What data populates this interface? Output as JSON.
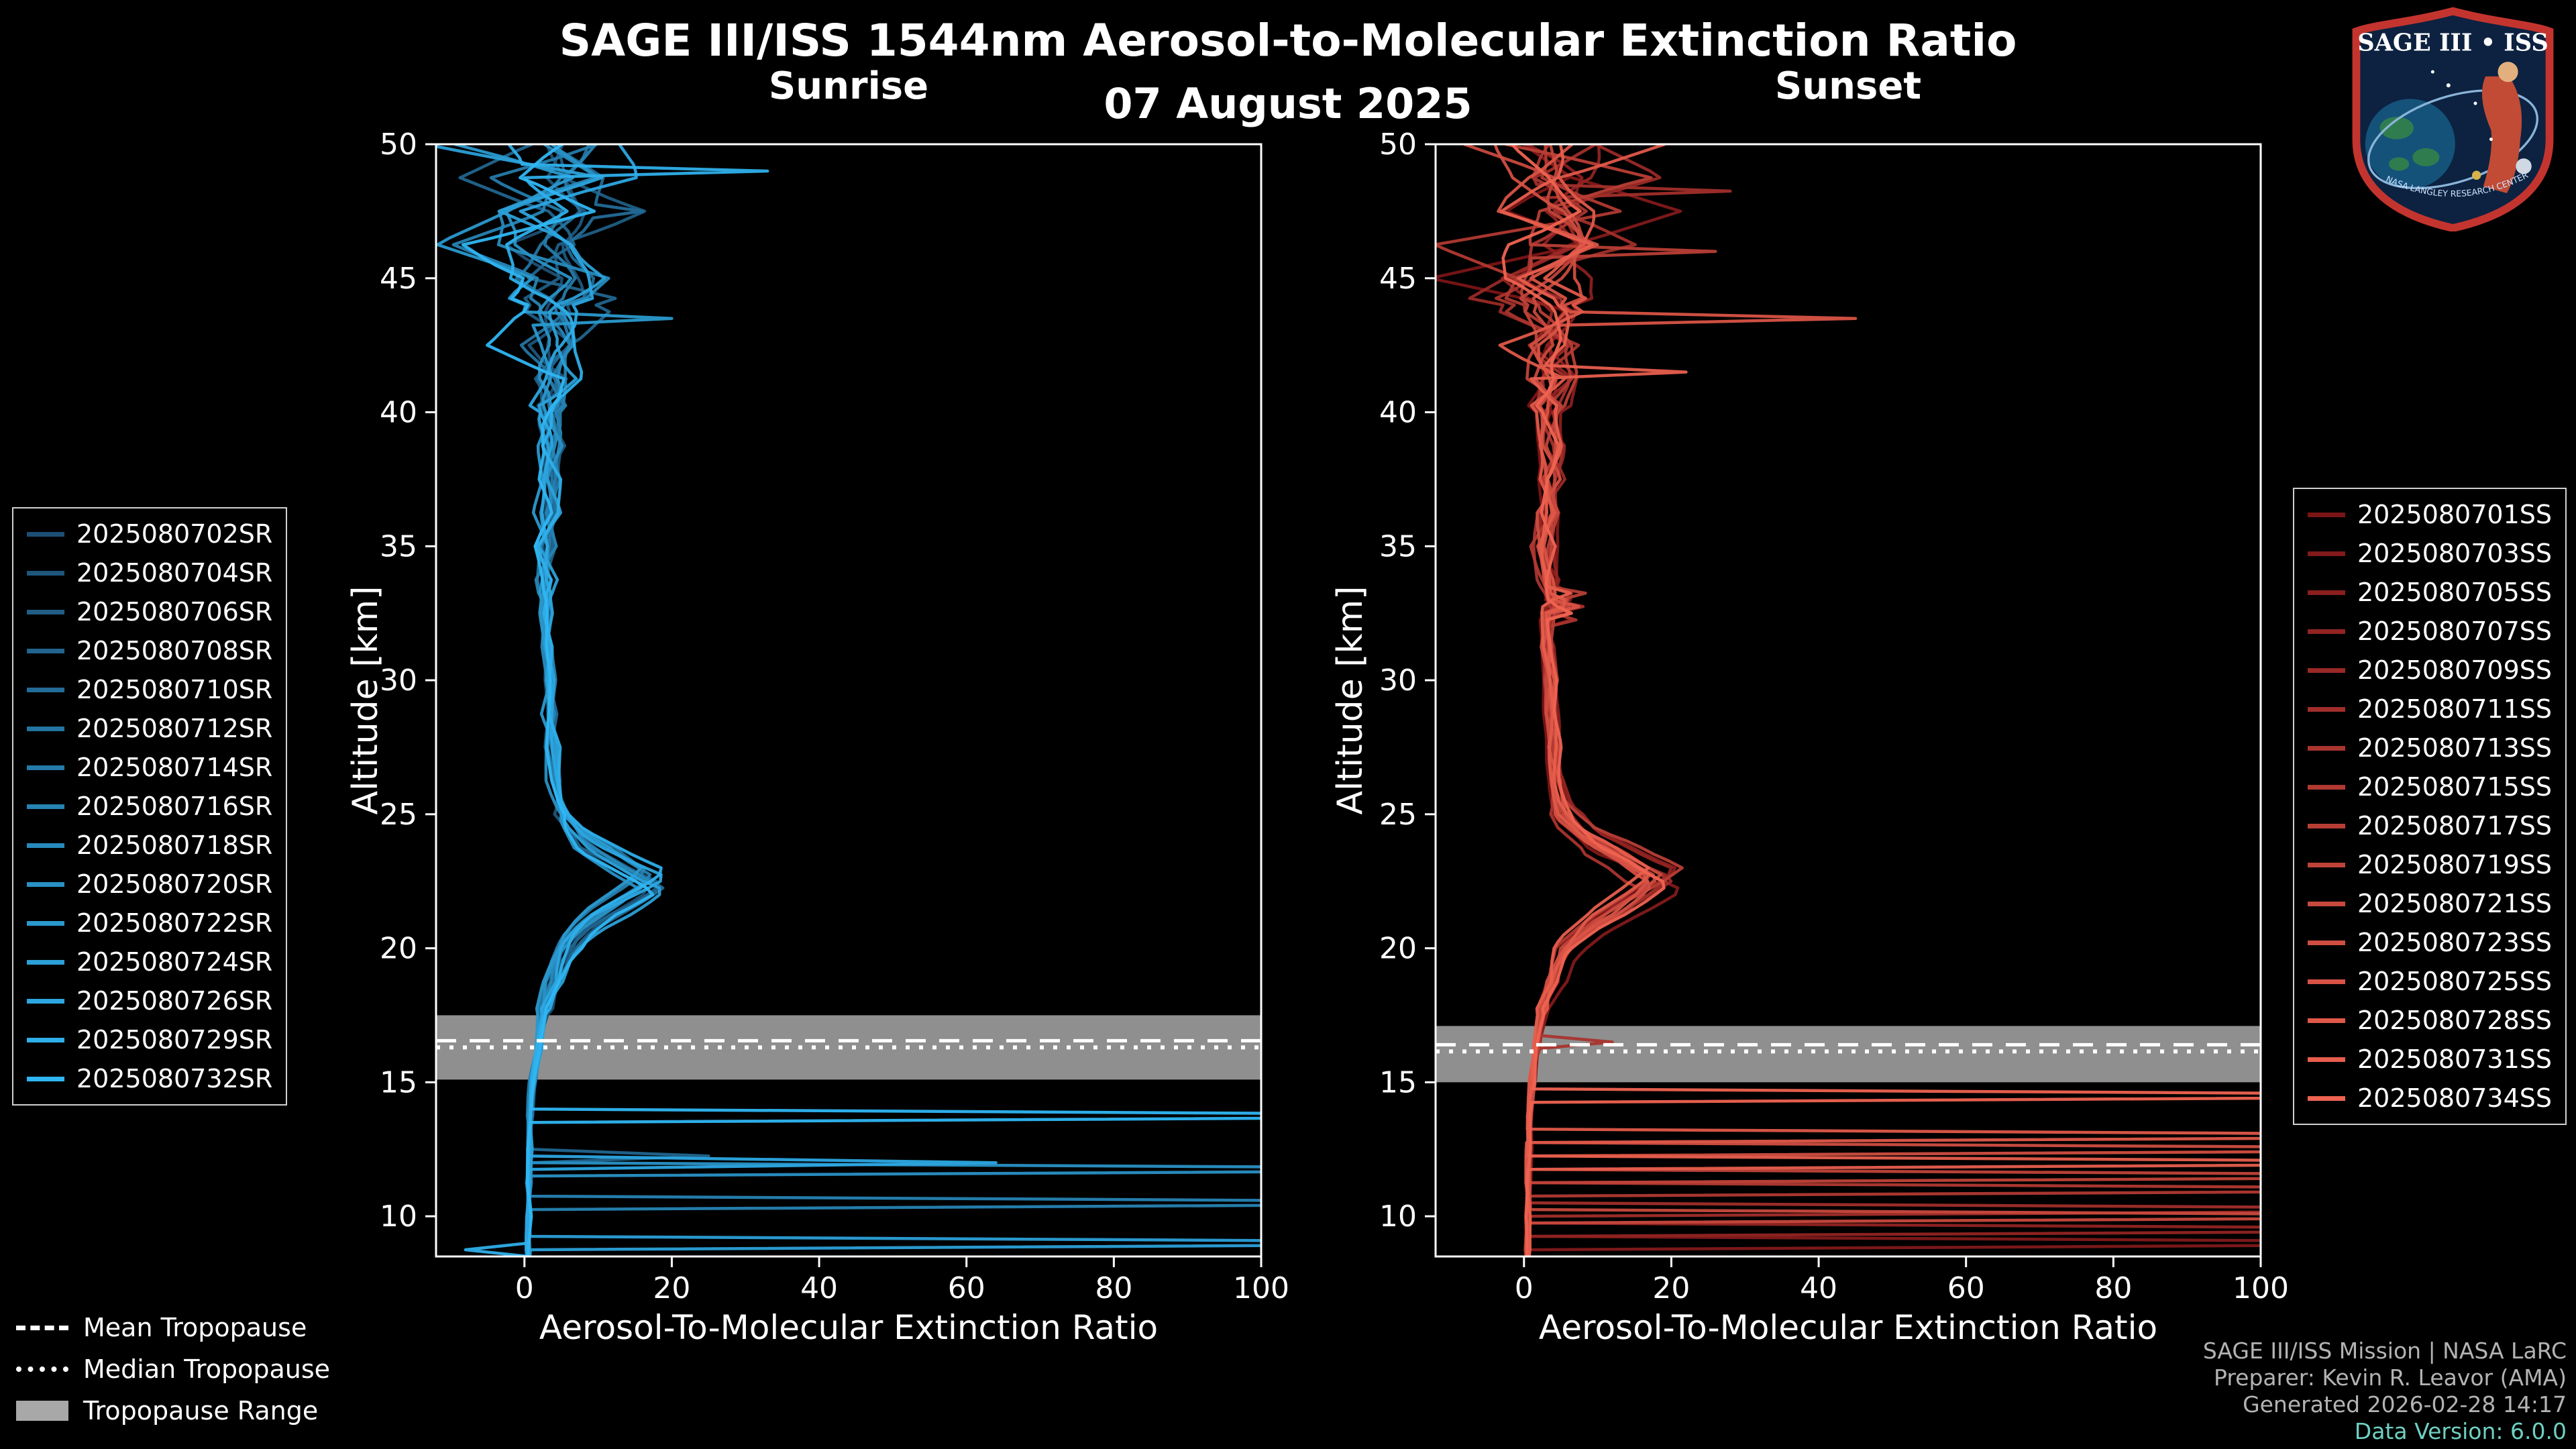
{
  "header": {
    "title": "SAGE III/ISS 1544nm Aerosol-to-Molecular Extinction Ratio",
    "date": "07 August 2025"
  },
  "logo": {
    "title": "SAGE III • ISS",
    "banner": "NASA LANGLEY RESEARCH CENTER"
  },
  "colors": {
    "background": "#000000",
    "foreground": "#ffffff",
    "sunrise_start": "#1d4f73",
    "sunrise_end": "#2fb6f3",
    "sunset_start": "#7a1416",
    "sunset_end": "#ef6351",
    "tropopause_band": "#a8a8a8",
    "credit_gray": "#b3b3b3",
    "credit_teal": "#6fd0c2",
    "logo_border": "#c4342f",
    "logo_fill": "#0c2240"
  },
  "tropopause_legend": {
    "mean_label": "Mean Tropopause",
    "median_label": "Median Tropopause",
    "range_label": "Tropopause Range"
  },
  "footer": {
    "lines": [
      "SAGE III/ISS Mission | NASA LaRC",
      "Preparer: Kevin R. Leavor (AMA)",
      "Generated 2026-02-28 14:17",
      "Data Version: 6.0.0"
    ]
  },
  "chart_data": [
    {
      "type": "line",
      "title": "Sunrise",
      "xlabel": "Aerosol-To-Molecular Extinction Ratio",
      "ylabel": "Altitude [km]",
      "xlim": [
        -12,
        100
      ],
      "ylim": [
        8.5,
        50
      ],
      "xticks": [
        0,
        20,
        40,
        60,
        80,
        100
      ],
      "yticks": [
        10,
        15,
        20,
        25,
        30,
        35,
        40,
        45,
        50
      ],
      "legend_position": "outside-left",
      "grid": false,
      "seed": 11,
      "color_start": "#1d4f73",
      "color_end": "#2fb6f3",
      "series": [
        "2025080702SR",
        "2025080704SR",
        "2025080706SR",
        "2025080708SR",
        "2025080710SR",
        "2025080712SR",
        "2025080714SR",
        "2025080716SR",
        "2025080718SR",
        "2025080720SR",
        "2025080722SR",
        "2025080724SR",
        "2025080726SR",
        "2025080729SR",
        "2025080732SR"
      ],
      "tropopause": {
        "mean": 16.55,
        "median": 16.3,
        "range": [
          15.1,
          17.5
        ]
      },
      "base_profile": [
        [
          50,
          3
        ],
        [
          49,
          4
        ],
        [
          48,
          3
        ],
        [
          47,
          4
        ],
        [
          46,
          3
        ],
        [
          45,
          4
        ],
        [
          44,
          3
        ],
        [
          43,
          4
        ],
        [
          42,
          3
        ],
        [
          41,
          4
        ],
        [
          40,
          3
        ],
        [
          39,
          4
        ],
        [
          38,
          3.5
        ],
        [
          37,
          3.5
        ],
        [
          36,
          3
        ],
        [
          35,
          3
        ],
        [
          34,
          2.8
        ],
        [
          33,
          3
        ],
        [
          32,
          3
        ],
        [
          31,
          3.2
        ],
        [
          30,
          3.4
        ],
        [
          29,
          3.4
        ],
        [
          28,
          3.5
        ],
        [
          27,
          3.8
        ],
        [
          26,
          4.2
        ],
        [
          25,
          5
        ],
        [
          24,
          8
        ],
        [
          23.5,
          11
        ],
        [
          23,
          14
        ],
        [
          22.5,
          17.5
        ],
        [
          22,
          15
        ],
        [
          21.5,
          12
        ],
        [
          21,
          9
        ],
        [
          20.5,
          7
        ],
        [
          20,
          5.5
        ],
        [
          19,
          4
        ],
        [
          18,
          3
        ],
        [
          17,
          2.2
        ],
        [
          16,
          1.6
        ],
        [
          15,
          1.1
        ],
        [
          14,
          0.8
        ],
        [
          13,
          0.7
        ],
        [
          12,
          0.6
        ],
        [
          11,
          0.6
        ],
        [
          10,
          0.6
        ],
        [
          9,
          0.5
        ],
        [
          8.5,
          0.5
        ]
      ],
      "noise_amp_bands": [
        [
          44,
          7
        ],
        [
          40,
          3.5
        ],
        [
          33,
          1.6
        ],
        [
          25,
          0.8
        ],
        [
          17.5,
          1.0
        ],
        [
          0,
          0.35
        ]
      ],
      "high_spikes": [
        {
          "series": 13,
          "alt": 49.0,
          "val": 33
        },
        {
          "series": 10,
          "alt": 43.6,
          "val": 20
        },
        {
          "series": 4,
          "alt": 47.6,
          "val": 16
        }
      ],
      "cloud_spikes": [
        {
          "series": 14,
          "alt": 13.7,
          "val": 160
        },
        {
          "series": 12,
          "alt": 12.0,
          "val": 64
        },
        {
          "series": 9,
          "alt": 11.8,
          "val": 160
        },
        {
          "series": 7,
          "alt": 10.4,
          "val": 160
        },
        {
          "series": 11,
          "alt": 9.0,
          "val": 160
        },
        {
          "series": 3,
          "alt": 12.3,
          "val": 25
        },
        {
          "series": 13,
          "alt": 8.8,
          "val": -8
        }
      ]
    },
    {
      "type": "line",
      "title": "Sunset",
      "xlabel": "Aerosol-To-Molecular Extinction Ratio",
      "ylabel": "Altitude [km]",
      "xlim": [
        -12,
        100
      ],
      "ylim": [
        8.5,
        50
      ],
      "xticks": [
        0,
        20,
        40,
        60,
        80,
        100
      ],
      "yticks": [
        10,
        15,
        20,
        25,
        30,
        35,
        40,
        45,
        50
      ],
      "legend_position": "outside-right",
      "grid": false,
      "seed": 77,
      "color_start": "#7a1416",
      "color_end": "#ef6351",
      "series": [
        "2025080701SS",
        "2025080703SS",
        "2025080705SS",
        "2025080707SS",
        "2025080709SS",
        "2025080711SS",
        "2025080713SS",
        "2025080715SS",
        "2025080717SS",
        "2025080719SS",
        "2025080721SS",
        "2025080723SS",
        "2025080725SS",
        "2025080728SS",
        "2025080731SS",
        "2025080734SS"
      ],
      "tropopause": {
        "mean": 16.4,
        "median": 16.15,
        "range": [
          15.0,
          17.1
        ]
      },
      "base_profile": [
        [
          50,
          3
        ],
        [
          49,
          4
        ],
        [
          48,
          3
        ],
        [
          47,
          4
        ],
        [
          46,
          3
        ],
        [
          45,
          4
        ],
        [
          44,
          3
        ],
        [
          43,
          4
        ],
        [
          42,
          3
        ],
        [
          41,
          4
        ],
        [
          40,
          3.5
        ],
        [
          39,
          3.5
        ],
        [
          38,
          4
        ],
        [
          37,
          3.5
        ],
        [
          36,
          3
        ],
        [
          35,
          2.8
        ],
        [
          34,
          2.8
        ],
        [
          33,
          3.5
        ],
        [
          32.8,
          8
        ],
        [
          32.5,
          3.2
        ],
        [
          31,
          3.2
        ],
        [
          30,
          3.5
        ],
        [
          29,
          3.6
        ],
        [
          28,
          4
        ],
        [
          27,
          4
        ],
        [
          26,
          4.5
        ],
        [
          25,
          5.5
        ],
        [
          24,
          9
        ],
        [
          23.5,
          13
        ],
        [
          23,
          16
        ],
        [
          22.6,
          19
        ],
        [
          22,
          16
        ],
        [
          21.5,
          13
        ],
        [
          21,
          10
        ],
        [
          20.5,
          8
        ],
        [
          20,
          6
        ],
        [
          19,
          4.2
        ],
        [
          18,
          3
        ],
        [
          17,
          2.2
        ],
        [
          16,
          1.6
        ],
        [
          15,
          1.1
        ],
        [
          14,
          0.8
        ],
        [
          13,
          0.7
        ],
        [
          12,
          0.6
        ],
        [
          11,
          0.6
        ],
        [
          10,
          0.6
        ],
        [
          9,
          0.5
        ],
        [
          8.5,
          0.5
        ]
      ],
      "noise_amp_bands": [
        [
          44,
          7
        ],
        [
          40,
          3.5
        ],
        [
          33,
          1.6
        ],
        [
          25,
          0.8
        ],
        [
          17.5,
          1.0
        ],
        [
          0,
          0.35
        ]
      ],
      "high_spikes": [
        {
          "series": 12,
          "alt": 43.5,
          "val": 45
        },
        {
          "series": 8,
          "alt": 46.0,
          "val": 26
        },
        {
          "series": 5,
          "alt": 48.3,
          "val": 28
        },
        {
          "series": 14,
          "alt": 41.5,
          "val": 22
        }
      ],
      "cloud_spikes": [
        {
          "series": 15,
          "alt": 14.6,
          "val": 160
        },
        {
          "series": 13,
          "alt": 13.1,
          "val": 160
        },
        {
          "series": 11,
          "alt": 12.4,
          "val": 160
        },
        {
          "series": 9,
          "alt": 11.6,
          "val": 160
        },
        {
          "series": 7,
          "alt": 10.9,
          "val": 160
        },
        {
          "series": 5,
          "alt": 10.2,
          "val": 160
        },
        {
          "series": 3,
          "alt": 9.5,
          "val": 160
        },
        {
          "series": 1,
          "alt": 8.9,
          "val": 160
        },
        {
          "series": 14,
          "alt": 12.0,
          "val": 160
        },
        {
          "series": 10,
          "alt": 9.9,
          "val": 160
        },
        {
          "series": 6,
          "alt": 16.4,
          "val": 12
        }
      ]
    }
  ]
}
